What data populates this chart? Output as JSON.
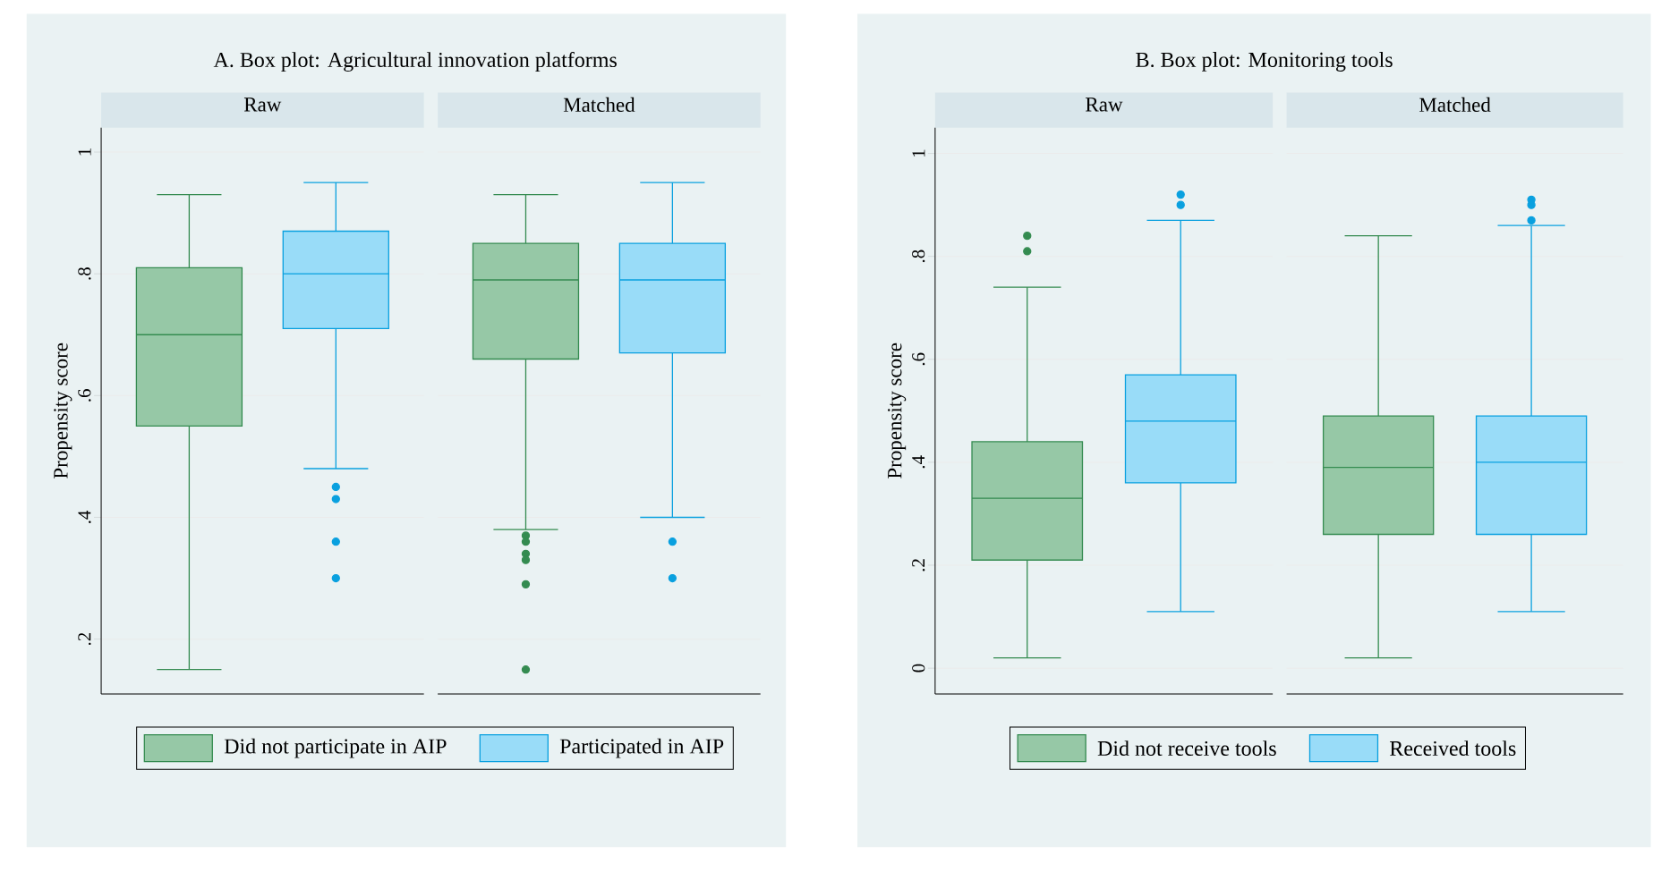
{
  "chart_data": [
    {
      "type": "box",
      "title": "A. Box plot: Agricultural innovation platforms",
      "ylabel": "Propensity score",
      "categories": [
        "Raw",
        "Matched"
      ],
      "series": [
        {
          "name": "Did not participate in AIP",
          "color": "#96c8a6",
          "boxes": [
            {
              "low": 0.15,
              "q1": 0.55,
              "median": 0.7,
              "q3": 0.81,
              "high": 0.93
            },
            {
              "low": 0.38,
              "q1": 0.66,
              "median": 0.79,
              "q3": 0.85,
              "high": 0.93,
              "outliers": [
                0.37,
                0.36,
                0.34,
                0.33,
                0.29,
                0.15
              ]
            }
          ]
        },
        {
          "name": "Participated in AIP",
          "color": "#99dcf8",
          "boxes": [
            {
              "low": 0.48,
              "q1": 0.71,
              "median": 0.8,
              "q3": 0.87,
              "high": 0.95,
              "outliers": [
                0.45,
                0.43,
                0.36,
                0.3
              ]
            },
            {
              "low": 0.4,
              "q1": 0.67,
              "median": 0.79,
              "q3": 0.85,
              "high": 0.95,
              "outliers": [
                0.36,
                0.3
              ]
            }
          ]
        }
      ],
      "ylim": [
        0.11,
        1.04
      ],
      "yticks": [
        {
          "value": 0.2,
          "label": ".2"
        },
        {
          "value": 0.4,
          "label": ".4"
        },
        {
          "value": 0.6,
          "label": ".6"
        },
        {
          "value": 0.8,
          "label": ".8"
        },
        1
      ],
      "grid": "y",
      "legend": "bottom"
    },
    {
      "type": "box",
      "title": "B. Box plot: Monitoring tools",
      "ylabel": "Propensity score",
      "categories": [
        "Raw",
        "Matched"
      ],
      "series": [
        {
          "name": "Did not receive tools",
          "color": "#96c8a6",
          "boxes": [
            {
              "low": 0.02,
              "q1": 0.21,
              "median": 0.33,
              "q3": 0.44,
              "high": 0.74,
              "outliers": [
                0.84,
                0.81
              ]
            },
            {
              "low": 0.02,
              "q1": 0.26,
              "median": 0.39,
              "q3": 0.49,
              "high": 0.84
            }
          ]
        },
        {
          "name": "Received tools",
          "color": "#99dcf8",
          "boxes": [
            {
              "low": 0.11,
              "q1": 0.36,
              "median": 0.48,
              "q3": 0.57,
              "high": 0.87,
              "outliers": [
                0.92,
                0.9
              ]
            },
            {
              "low": 0.11,
              "q1": 0.26,
              "median": 0.4,
              "q3": 0.49,
              "high": 0.86,
              "outliers": [
                0.91,
                0.9,
                0.87
              ]
            }
          ]
        }
      ],
      "ylim": [
        -0.05,
        1.05
      ],
      "yticks": [
        0,
        {
          "value": 0.2,
          "label": ".2"
        },
        {
          "value": 0.4,
          "label": ".4"
        },
        {
          "value": 0.6,
          "label": ".6"
        },
        {
          "value": 0.8,
          "label": ".8"
        },
        1
      ],
      "grid": "y",
      "legend": "bottom"
    }
  ]
}
